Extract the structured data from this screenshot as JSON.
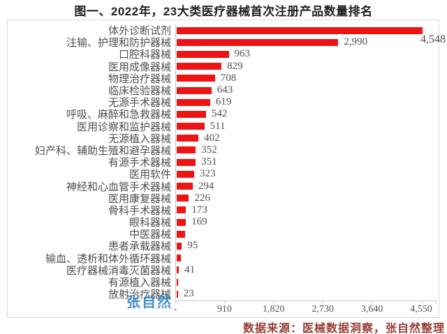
{
  "title": "图一、2022年，23大类医疗器械首次注册产品数量排名",
  "source_note": "数据来源：医械数据洞察，张自然整理",
  "watermark": "张自然",
  "colors": {
    "bar": "#ee1414",
    "title": "#1f1f1f",
    "label": "#4f4f4f",
    "source": "#963c34",
    "watermark": "#2b7ec2",
    "axis": "#c6c6c6"
  },
  "chart_data": {
    "type": "bar",
    "orientation": "horizontal",
    "title": "图一、2022年，23大类医疗器械首次注册产品数量排名",
    "xlabel": "",
    "ylabel": "",
    "xlim": [
      0,
      4550
    ],
    "x_ticks": [
      "-",
      "910",
      "1,820",
      "2,730",
      "3,640",
      "4,550"
    ],
    "grid": false,
    "legend": false,
    "categories": [
      "体外诊断试剂",
      "注输、护理和防护器械",
      "口腔科器械",
      "医用成像器械",
      "物理治疗器械",
      "临床检验器械",
      "无源手术器械",
      "呼吸、麻醉和急救器械",
      "医用诊察和监护器械",
      "无源植入器械",
      "妇产科、辅助生殖和避孕器械",
      "有源手术器械",
      "医用软件",
      "神经和心血管手术器械",
      "医用康复器械",
      "骨科手术器械",
      "眼科器械",
      "中医器械",
      "患者承载器械",
      "输血、透析和体外循环器械",
      "医疗器械消毒灭菌器械",
      "有源植入器械",
      "放射治疗器械"
    ],
    "values": [
      4548,
      2990,
      963,
      829,
      708,
      643,
      619,
      542,
      511,
      402,
      352,
      351,
      323,
      294,
      226,
      173,
      169,
      160,
      95,
      78,
      41,
      30,
      23
    ],
    "value_labels": [
      "4,548",
      "2,990",
      "963",
      "829",
      "708",
      "643",
      "619",
      "542",
      "511",
      "402",
      "352",
      "351",
      "323",
      "294",
      "226",
      "173",
      "169",
      "",
      "95",
      "",
      "41",
      "",
      "23"
    ]
  }
}
